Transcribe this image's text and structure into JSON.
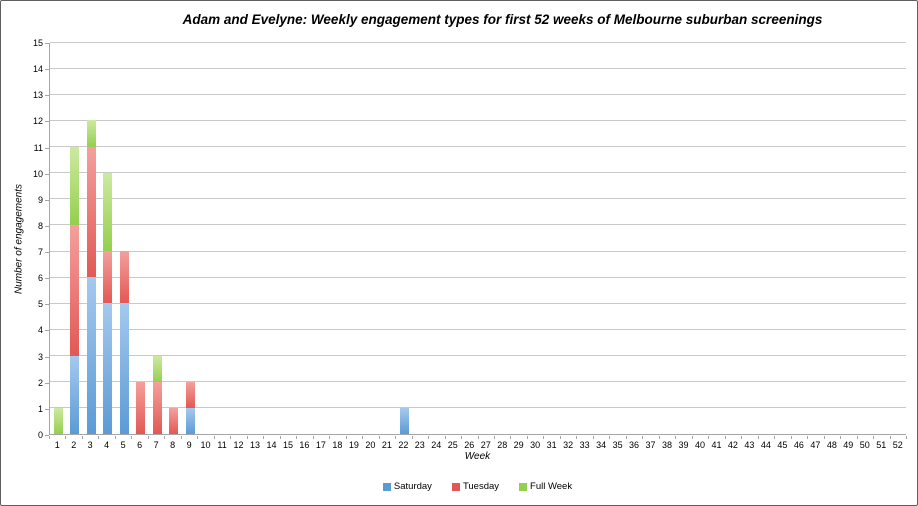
{
  "window": {
    "background": "#ffffff",
    "border_color": "#5f5f5f",
    "gridline_color": "#c9c9c9",
    "axis_color": "#a6a6a6"
  },
  "chart_data": {
    "type": "bar",
    "stacked": true,
    "title": "Adam and Evelyne: Weekly engagement types for first 52 weeks of Melbourne suburban screenings",
    "xlabel": "Week",
    "ylabel": "Number of engagements",
    "ylim": [
      0,
      15
    ],
    "ytick_step": 1,
    "grid": "horizontal",
    "legend_position": "bottom",
    "categories": [
      1,
      2,
      3,
      4,
      5,
      6,
      7,
      8,
      9,
      10,
      11,
      12,
      13,
      14,
      15,
      16,
      17,
      18,
      19,
      20,
      21,
      22,
      23,
      24,
      25,
      26,
      27,
      28,
      29,
      30,
      31,
      32,
      33,
      34,
      35,
      36,
      37,
      38,
      39,
      40,
      41,
      42,
      43,
      44,
      45,
      46,
      47,
      48,
      49,
      50,
      51,
      52
    ],
    "series": [
      {
        "name": "Saturday",
        "color": "#5b9bd5",
        "color_light": "#a5c9ef",
        "values": [
          0,
          3,
          6,
          5,
          5,
          0,
          0,
          0,
          1,
          0,
          0,
          0,
          0,
          0,
          0,
          0,
          0,
          0,
          0,
          0,
          0,
          1,
          0,
          0,
          0,
          0,
          0,
          0,
          0,
          0,
          0,
          0,
          0,
          0,
          0,
          0,
          0,
          0,
          0,
          0,
          0,
          0,
          0,
          0,
          0,
          0,
          0,
          0,
          0,
          0,
          0,
          0
        ]
      },
      {
        "name": "Tuesday",
        "color": "#e25854",
        "color_light": "#f4a09d",
        "values": [
          0,
          5,
          5,
          2,
          2,
          2,
          2,
          1,
          1,
          0,
          0,
          0,
          0,
          0,
          0,
          0,
          0,
          0,
          0,
          0,
          0,
          0,
          0,
          0,
          0,
          0,
          0,
          0,
          0,
          0,
          0,
          0,
          0,
          0,
          0,
          0,
          0,
          0,
          0,
          0,
          0,
          0,
          0,
          0,
          0,
          0,
          0,
          0,
          0,
          0,
          0,
          0
        ]
      },
      {
        "name": "Full Week",
        "color": "#94cf4e",
        "color_light": "#cdeaa0",
        "values": [
          1,
          3,
          1,
          3,
          0,
          0,
          1,
          0,
          0,
          0,
          0,
          0,
          0,
          0,
          0,
          0,
          0,
          0,
          0,
          0,
          0,
          0,
          0,
          0,
          0,
          0,
          0,
          0,
          0,
          0,
          0,
          0,
          0,
          0,
          0,
          0,
          0,
          0,
          0,
          0,
          0,
          0,
          0,
          0,
          0,
          0,
          0,
          0,
          0,
          0,
          0,
          0
        ]
      }
    ]
  }
}
